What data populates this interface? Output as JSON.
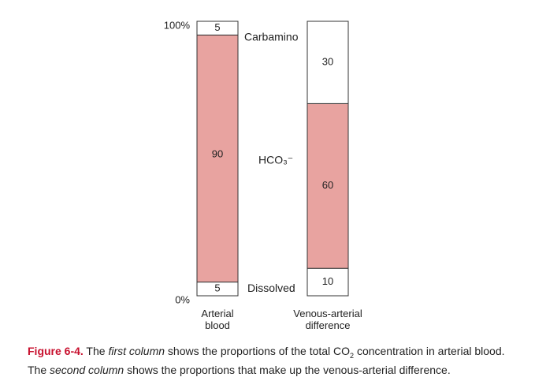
{
  "chart_data": {
    "type": "bar",
    "stacked": true,
    "categories": [
      "Arterial blood",
      "Venous-arterial difference"
    ],
    "series": [
      {
        "name": "Dissolved",
        "color": "#ffffff",
        "values": [
          5,
          10
        ]
      },
      {
        "name": "HCO₃⁻",
        "color": "#e8a3a0",
        "values": [
          90,
          60
        ]
      },
      {
        "name": "Carbamino",
        "color": "#ffffff",
        "values": [
          5,
          30
        ]
      }
    ],
    "legend_color": "#c8102e",
    "ylim": [
      0,
      100
    ],
    "yticks": [
      {
        "value": 0,
        "label": "0%"
      },
      {
        "value": 100,
        "label": "100%"
      }
    ]
  },
  "caption": {
    "label": "Figure 6-4.",
    "parts": [
      " The ",
      "first column",
      " shows the proportions of the total CO",
      "2",
      " concentration in arterial blood. The ",
      "second column",
      " shows the proportions that make up the venous-arterial difference."
    ]
  }
}
